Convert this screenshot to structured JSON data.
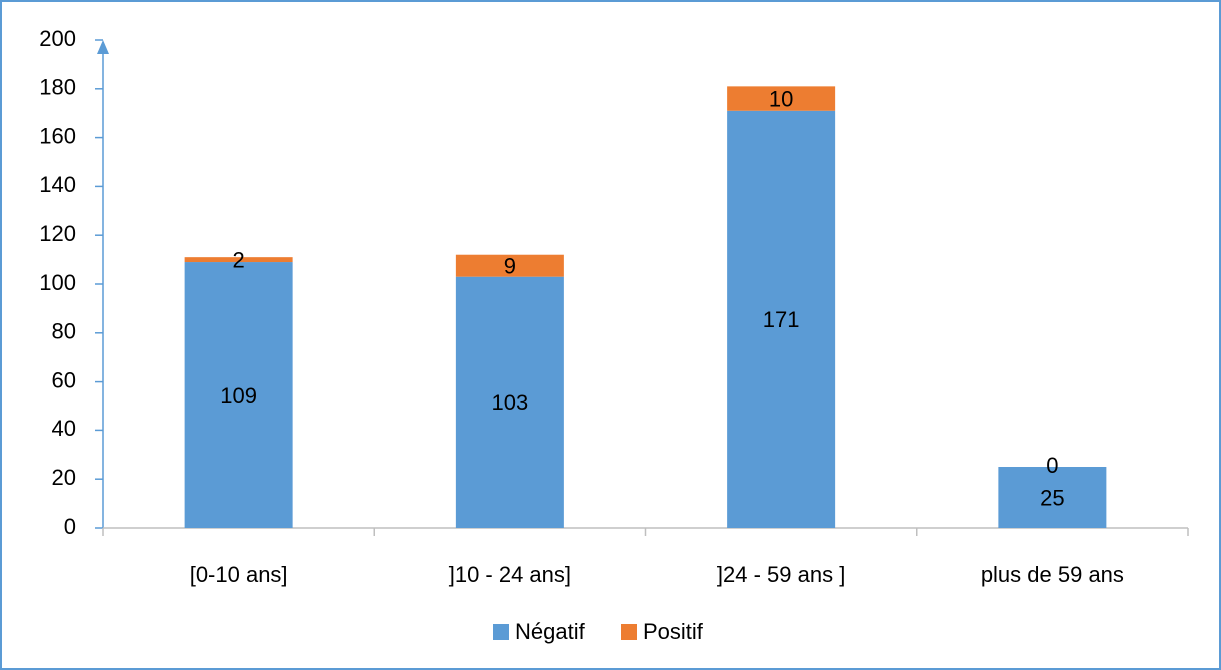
{
  "chart_data": {
    "type": "stacked_bar",
    "categories": [
      "[0-10 ans]",
      "]10 - 24 ans]",
      "]24 - 59 ans ]",
      "plus de 59 ans"
    ],
    "series": [
      {
        "name": "Négatif",
        "color": "#5b9bd5",
        "values": [
          109,
          103,
          171,
          25
        ]
      },
      {
        "name": "Positif",
        "color": "#ed7d31",
        "values": [
          2,
          9,
          10,
          0
        ]
      }
    ],
    "ylim": [
      0,
      200
    ],
    "yticks": [
      0,
      20,
      40,
      60,
      80,
      100,
      120,
      140,
      160,
      180,
      200
    ],
    "grid": false,
    "legend": "bottom"
  }
}
